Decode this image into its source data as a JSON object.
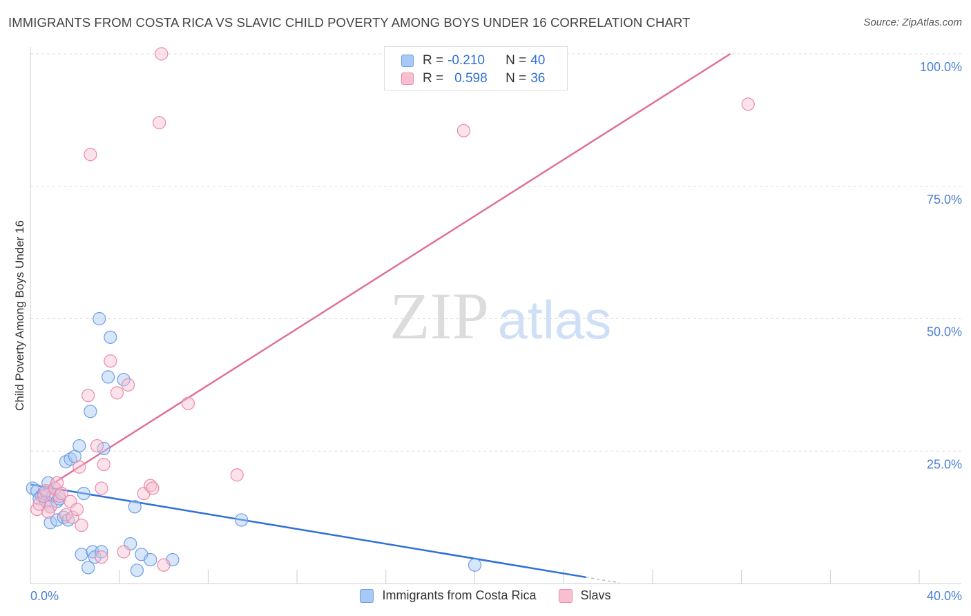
{
  "title": "IMMIGRANTS FROM COSTA RICA VS SLAVIC CHILD POVERTY AMONG BOYS UNDER 16 CORRELATION CHART",
  "source": "Source: ZipAtlas.com",
  "watermark": {
    "zip": "ZIP",
    "atlas": "atlas"
  },
  "legend": {
    "rows": [
      {
        "r_label": "R =",
        "r_value": "-0.210",
        "n_label": "N =",
        "n_value": "40",
        "color": "#a8c8f5",
        "border": "#6a9ee8"
      },
      {
        "r_label": "R =",
        "r_value": "0.598",
        "n_label": "N =",
        "n_value": "36",
        "color": "#f8bfd0",
        "border": "#ea8aa8"
      }
    ]
  },
  "bottom_legend": [
    {
      "label": "Immigrants from Costa Rica",
      "color": "#a8c8f5",
      "border": "#6a9ee8"
    },
    {
      "label": "Slavs",
      "color": "#f8bfd0",
      "border": "#ea8aa8"
    }
  ],
  "chart_data": {
    "type": "scatter",
    "title": "IMMIGRANTS FROM COSTA RICA VS SLAVIC CHILD POVERTY AMONG BOYS UNDER 16 CORRELATION CHART",
    "xlabel": "",
    "ylabel": "Child Poverty Among Boys Under 16",
    "xlim": [
      0,
      40
    ],
    "ylim": [
      0,
      100
    ],
    "x_tick_labels": [
      "0.0%",
      "40.0%"
    ],
    "y_ticks": [
      25,
      50,
      75,
      100
    ],
    "y_tick_labels": [
      "25.0%",
      "50.0%",
      "75.0%",
      "100.0%"
    ],
    "grid": "horizontal dashed",
    "legend_position": "top-center",
    "series": [
      {
        "name": "Immigrants from Costa Rica",
        "color": "#6a9ee8",
        "fill": "#a8c8f5",
        "points": [
          [
            0.1,
            18.0
          ],
          [
            0.3,
            17.5
          ],
          [
            0.5,
            16.5
          ],
          [
            0.4,
            16.0
          ],
          [
            0.6,
            17.0
          ],
          [
            0.7,
            15.5
          ],
          [
            0.8,
            19.0
          ],
          [
            0.9,
            14.5
          ],
          [
            1.0,
            16.5
          ],
          [
            1.1,
            18.0
          ],
          [
            1.2,
            15.5
          ],
          [
            1.3,
            16.0
          ],
          [
            0.9,
            11.5
          ],
          [
            1.2,
            12.0
          ],
          [
            1.5,
            12.5
          ],
          [
            1.7,
            12.0
          ],
          [
            1.6,
            23.0
          ],
          [
            1.8,
            23.5
          ],
          [
            2.0,
            24.0
          ],
          [
            2.2,
            26.0
          ],
          [
            2.4,
            17.0
          ],
          [
            2.7,
            32.5
          ],
          [
            3.1,
            50.0
          ],
          [
            3.5,
            39.0
          ],
          [
            3.6,
            46.5
          ],
          [
            4.2,
            38.5
          ],
          [
            3.3,
            25.5
          ],
          [
            4.7,
            14.5
          ],
          [
            2.3,
            5.5
          ],
          [
            2.6,
            3.0
          ],
          [
            2.8,
            6.0
          ],
          [
            2.9,
            5.0
          ],
          [
            3.2,
            6.0
          ],
          [
            4.5,
            7.5
          ],
          [
            4.8,
            2.5
          ],
          [
            5.0,
            5.5
          ],
          [
            5.4,
            4.5
          ],
          [
            6.4,
            4.5
          ],
          [
            9.5,
            12.0
          ],
          [
            20.0,
            3.5
          ]
        ]
      },
      {
        "name": "Slavs",
        "color": "#ea8aa8",
        "fill": "#f8bfd0",
        "points": [
          [
            0.3,
            14.0
          ],
          [
            0.4,
            15.0
          ],
          [
            0.6,
            16.5
          ],
          [
            0.7,
            17.5
          ],
          [
            0.9,
            14.5
          ],
          [
            1.1,
            18.0
          ],
          [
            1.3,
            16.5
          ],
          [
            1.2,
            19.0
          ],
          [
            1.4,
            17.0
          ],
          [
            0.8,
            13.5
          ],
          [
            1.6,
            13.0
          ],
          [
            1.8,
            15.5
          ],
          [
            1.9,
            12.5
          ],
          [
            2.1,
            14.0
          ],
          [
            2.3,
            11.0
          ],
          [
            2.2,
            22.0
          ],
          [
            2.6,
            35.5
          ],
          [
            2.7,
            81.0
          ],
          [
            3.0,
            26.0
          ],
          [
            3.2,
            18.0
          ],
          [
            3.3,
            22.5
          ],
          [
            3.6,
            42.0
          ],
          [
            3.9,
            36.0
          ],
          [
            4.2,
            6.0
          ],
          [
            4.4,
            37.5
          ],
          [
            5.1,
            17.0
          ],
          [
            5.4,
            18.5
          ],
          [
            5.5,
            18.0
          ],
          [
            5.8,
            87.0
          ],
          [
            5.9,
            100.0
          ],
          [
            7.1,
            34.0
          ],
          [
            9.3,
            20.5
          ],
          [
            19.5,
            85.5
          ],
          [
            32.3,
            90.5
          ],
          [
            3.2,
            5.0
          ],
          [
            6.0,
            3.5
          ]
        ]
      }
    ],
    "trend_lines": [
      {
        "series": "Immigrants from Costa Rica",
        "x": [
          0,
          25
        ],
        "y": [
          18.7,
          1.2
        ],
        "dashed_extension_to_x": 26.5
      },
      {
        "series": "Slavs",
        "x": [
          0.5,
          31.5
        ],
        "y": [
          17.5,
          100.0
        ]
      }
    ]
  }
}
